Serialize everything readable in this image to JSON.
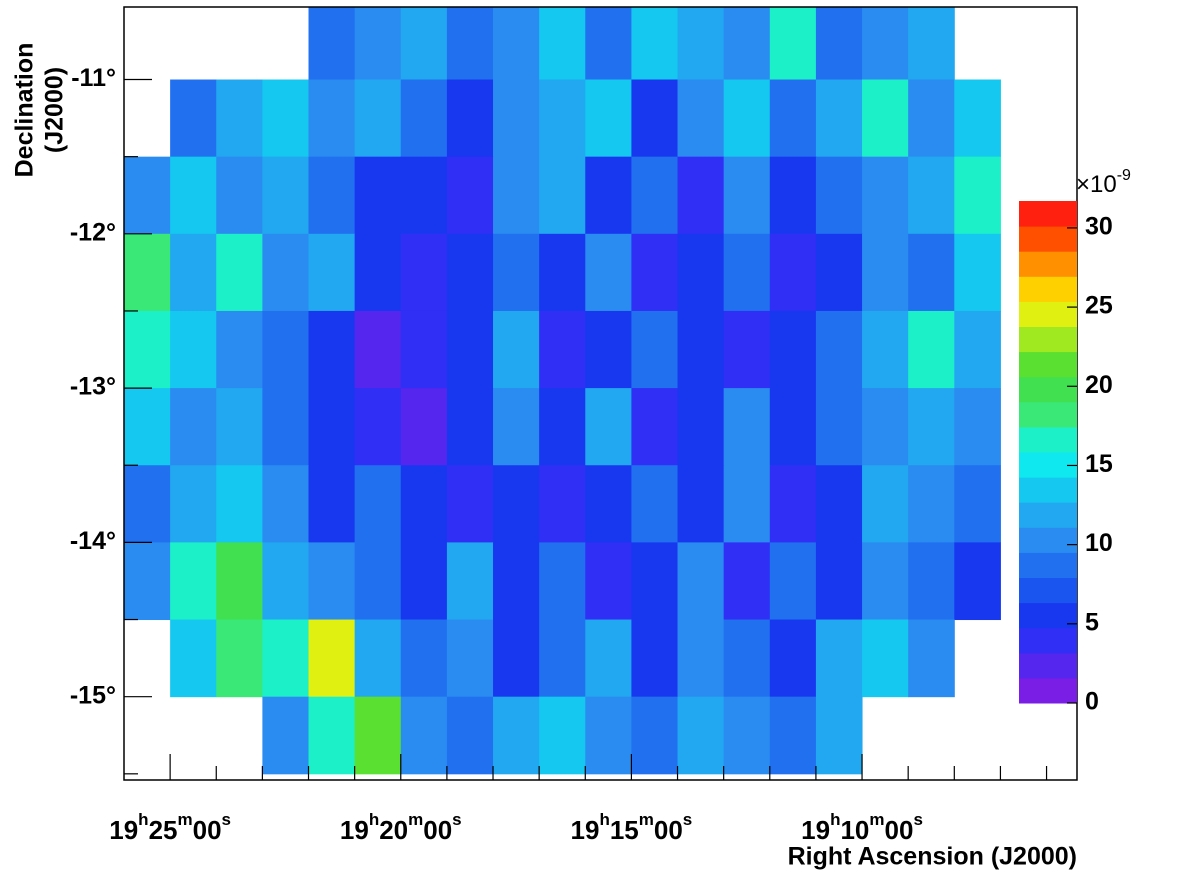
{
  "chart_data": {
    "type": "heatmap",
    "ylabel": [
      "Declination",
      "(J2000)"
    ],
    "xlabel": "Right Ascension (J2000)",
    "xlim": [
      1166.0,
      1145.34
    ],
    "xticks": [
      {
        "value": 1165,
        "label": "19h25m00s"
      },
      {
        "value": 1160,
        "label": "19h20m00s"
      },
      {
        "value": 1155,
        "label": "19h15m00s"
      },
      {
        "value": 1150,
        "label": "19h10m00s"
      }
    ],
    "xminorticks": [
      1164,
      1163,
      1162,
      1161,
      1159,
      1158,
      1157,
      1156,
      1154,
      1153,
      1152,
      1151,
      1149,
      1148,
      1147,
      1146
    ],
    "ylim": [
      -15.54,
      -10.53
    ],
    "yticks": [
      {
        "value": -11,
        "label": "-11°"
      },
      {
        "value": -12,
        "label": "-12°"
      },
      {
        "value": -13,
        "label": "-13°"
      },
      {
        "value": -14,
        "label": "-14°"
      },
      {
        "value": -15,
        "label": "-15°"
      }
    ],
    "yminorticks": [
      -11.5,
      -12.5,
      -13.5,
      -14.5,
      -15.5
    ],
    "x_bins": [
      1166,
      1165,
      1164,
      1163,
      1162,
      1161,
      1160,
      1159,
      1158,
      1157,
      1156,
      1155,
      1154,
      1153,
      1152,
      1151,
      1150,
      1149,
      1148,
      1147,
      1146
    ],
    "y_bins": [
      -10.5,
      -11,
      -11.5,
      -12,
      -12.5,
      -13,
      -13.5,
      -14,
      -14.5,
      -15,
      -15.5
    ],
    "z": [
      [
        null,
        null,
        null,
        null,
        8,
        10,
        12,
        8,
        10,
        14,
        8,
        14,
        12,
        10,
        16,
        8,
        10,
        12,
        null,
        null
      ],
      [
        null,
        9,
        12,
        14,
        10,
        12,
        8,
        6,
        10,
        12,
        14,
        6,
        10,
        14,
        8,
        12,
        16,
        10,
        14,
        null
      ],
      [
        10,
        14,
        10,
        12,
        8,
        5,
        6,
        4,
        10,
        12,
        6,
        8,
        4,
        10,
        6,
        8,
        10,
        12,
        16,
        null
      ],
      [
        18,
        12,
        16,
        10,
        12,
        6,
        4,
        6,
        8,
        5,
        10,
        4,
        6,
        8,
        4,
        6,
        10,
        8,
        14,
        null
      ],
      [
        16,
        14,
        10,
        8,
        5,
        3,
        4,
        6,
        12,
        4,
        6,
        8,
        5,
        4,
        6,
        8,
        12,
        16,
        12,
        null
      ],
      [
        14,
        10,
        12,
        8,
        6,
        4,
        3,
        5,
        10,
        6,
        12,
        4,
        5,
        10,
        6,
        8,
        10,
        12,
        10,
        null
      ],
      [
        8,
        12,
        14,
        10,
        6,
        8,
        5,
        4,
        6,
        4,
        5,
        8,
        6,
        10,
        4,
        6,
        12,
        10,
        8,
        null
      ],
      [
        10,
        16,
        20,
        12,
        10,
        8,
        6,
        12,
        5,
        8,
        4,
        6,
        10,
        4,
        8,
        6,
        10,
        8,
        6,
        null
      ],
      [
        null,
        14,
        18,
        16,
        24,
        12,
        8,
        10,
        6,
        8,
        12,
        6,
        10,
        8,
        6,
        12,
        14,
        10,
        null,
        null
      ],
      [
        null,
        null,
        null,
        10,
        16,
        22,
        10,
        8,
        12,
        14,
        10,
        8,
        12,
        10,
        8,
        12,
        null,
        null,
        null,
        null
      ]
    ],
    "zlim": [
      0,
      31.7
    ],
    "zticks": [
      0,
      5,
      10,
      15,
      20,
      25,
      30
    ],
    "z_multiplier": "×10",
    "z_exponent": "-9",
    "palette": [
      "#7a1ee6",
      "#5426ee",
      "#2f2ff5",
      "#1838f0",
      "#1a55f0",
      "#2070f0",
      "#2a8cf0",
      "#22a8f0",
      "#14c8f0",
      "#10e8f0",
      "#1cf0c8",
      "#3ae878",
      "#40e050",
      "#5ae030",
      "#a0e820",
      "#e0f010",
      "#ffd000",
      "#ff9000",
      "#ff5000",
      "#ff2010"
    ]
  }
}
